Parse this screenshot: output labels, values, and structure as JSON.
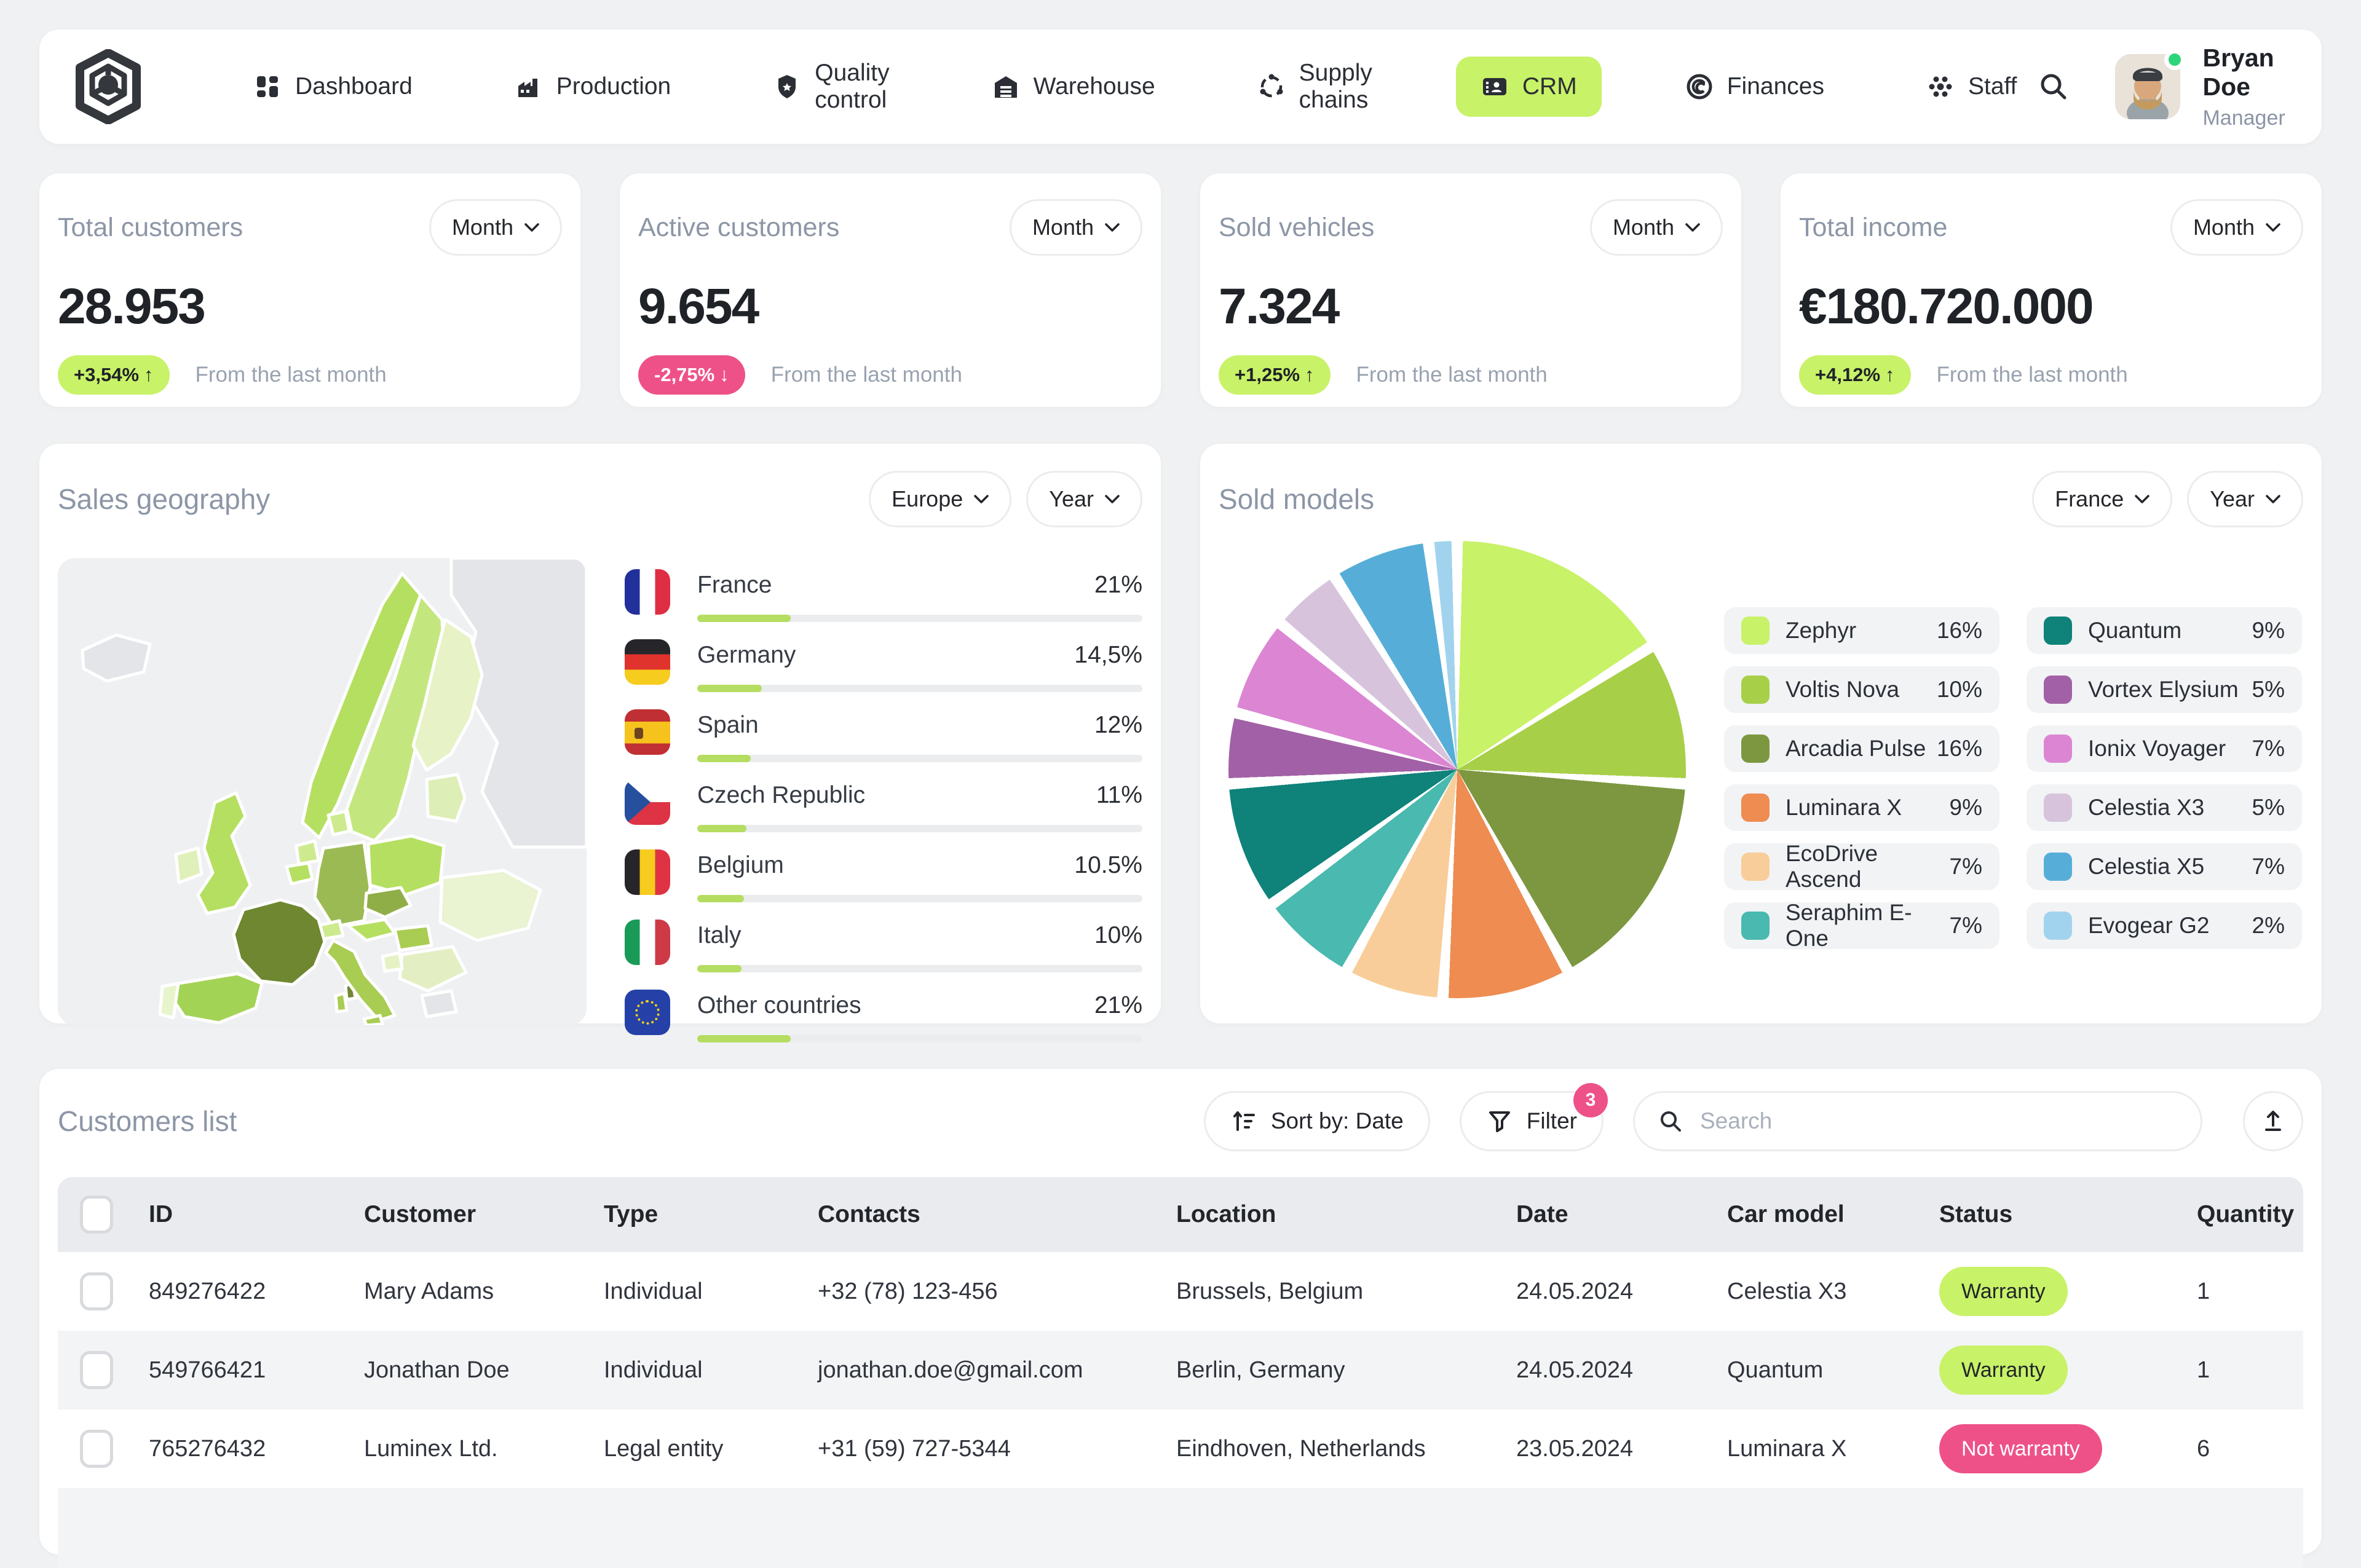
{
  "user": {
    "name": "Bryan Doe",
    "role": "Manager"
  },
  "nav": {
    "items": [
      {
        "label": "Dashboard",
        "icon": "dashboard-grid-icon"
      },
      {
        "label": "Production",
        "icon": "factory-icon"
      },
      {
        "label": "Quality control",
        "icon": "shield-icon"
      },
      {
        "label": "Warehouse",
        "icon": "warehouse-icon"
      },
      {
        "label": "Supply chains",
        "icon": "supply-loop-icon"
      },
      {
        "label": "CRM",
        "icon": "contact-card-icon",
        "active": true
      },
      {
        "label": "Finances",
        "icon": "coin-icon"
      },
      {
        "label": "Staff",
        "icon": "people-icon"
      }
    ]
  },
  "stats": [
    {
      "title": "Total customers",
      "period": "Month",
      "value": "28.953",
      "delta": "+3,54%",
      "arrow": "↑",
      "tone": "positive",
      "caption": "From the last month"
    },
    {
      "title": "Active customers",
      "period": "Month",
      "value": "9.654",
      "delta": "-2,75%",
      "arrow": "↓",
      "tone": "negative",
      "caption": "From the last month"
    },
    {
      "title": "Sold vehicles",
      "period": "Month",
      "value": "7.324",
      "delta": "+1,25%",
      "arrow": "↑",
      "tone": "positive",
      "caption": "From the last month"
    },
    {
      "title": "Total income",
      "period": "Month",
      "value": "€180.720.000",
      "delta": "+4,12%",
      "arrow": "↑",
      "tone": "positive",
      "caption": "From the last month"
    }
  ],
  "geo": {
    "title": "Sales geography",
    "region_label": "Europe",
    "period_label": "Year",
    "countries": [
      {
        "name": "France",
        "value_label": "21%",
        "value": 21,
        "flag": "fr"
      },
      {
        "name": "Germany",
        "value_label": "14,5%",
        "value": 14.5,
        "flag": "de"
      },
      {
        "name": "Spain",
        "value_label": "12%",
        "value": 12,
        "flag": "es"
      },
      {
        "name": "Czech Republic",
        "value_label": "11%",
        "value": 11,
        "flag": "cz"
      },
      {
        "name": "Belgium",
        "value_label": "10.5%",
        "value": 10.5,
        "flag": "be"
      },
      {
        "name": "Italy",
        "value_label": "10%",
        "value": 10,
        "flag": "it"
      },
      {
        "name": "Other countries",
        "value_label": "21%",
        "value": 21,
        "flag": "eu"
      }
    ]
  },
  "models": {
    "title": "Sold models",
    "region_label": "France",
    "period_label": "Year",
    "items": [
      {
        "name": "Zephyr",
        "value": 16,
        "value_label": "16%",
        "color": "#c8f268"
      },
      {
        "name": "Voltis Nova",
        "value": 10,
        "value_label": "10%",
        "color": "#a8cf48"
      },
      {
        "name": "Arcadia Pulse",
        "value": 16,
        "value_label": "16%",
        "color": "#7d9740"
      },
      {
        "name": "Luminara X",
        "value": 9,
        "value_label": "9%",
        "color": "#ee8c51"
      },
      {
        "name": "EcoDrive Ascend",
        "value": 7,
        "value_label": "7%",
        "color": "#f9cd99"
      },
      {
        "name": "Seraphim E-One",
        "value": 7,
        "value_label": "7%",
        "color": "#4ab9af"
      },
      {
        "name": "Quantum",
        "value": 9,
        "value_label": "9%",
        "color": "#0f827a"
      },
      {
        "name": "Vortex Elysium",
        "value": 5,
        "value_label": "5%",
        "color": "#a260a6"
      },
      {
        "name": "Ionix Voyager",
        "value": 7,
        "value_label": "7%",
        "color": "#dc86d3"
      },
      {
        "name": "Celestia X3",
        "value": 5,
        "value_label": "5%",
        "color": "#d7c4dc"
      },
      {
        "name": "Celestia X5",
        "value": 7,
        "value_label": "7%",
        "color": "#56aed8"
      },
      {
        "name": "Evogear G2",
        "value": 2,
        "value_label": "2%",
        "color": "#a2d3ee"
      }
    ]
  },
  "customers": {
    "title": "Customers list",
    "toolbar": {
      "sort_label": "Sort by: Date",
      "filter_label": "Filter",
      "filter_count": "3",
      "search_placeholder": "Search"
    },
    "columns": [
      "ID",
      "Customer",
      "Type",
      "Contacts",
      "Location",
      "Date",
      "Car model",
      "Status",
      "Quantity"
    ],
    "rows": [
      {
        "id": "849276422",
        "customer": "Mary Adams",
        "type": "Individual",
        "contacts": "+32 (78) 123-456",
        "location": "Brussels, Belgium",
        "date": "24.05.2024",
        "car_model": "Celestia X3",
        "status": "Warranty",
        "status_tone": "positive",
        "quantity": "1"
      },
      {
        "id": "549766421",
        "customer": "Jonathan Doe",
        "type": "Individual",
        "contacts": "jonathan.doe@gmail.com",
        "location": "Berlin, Germany",
        "date": "24.05.2024",
        "car_model": "Quantum",
        "status": "Warranty",
        "status_tone": "positive",
        "quantity": "1"
      },
      {
        "id": "765276432",
        "customer": "Luminex Ltd.",
        "type": "Legal entity",
        "contacts": "+31 (59) 727-5344",
        "location": "Eindhoven, Netherlands",
        "date": "23.05.2024",
        "car_model": "Luminara X",
        "status": "Not warranty",
        "status_tone": "negative",
        "quantity": "6"
      }
    ]
  },
  "colors": {
    "accent_green": "#c8f268",
    "accent_pink": "#ee5188",
    "bar_green": "#b5dd62",
    "online": "#2ed47a"
  },
  "chart_data": [
    {
      "type": "pie",
      "title": "Sold models",
      "unit": "%",
      "legend_position": "right",
      "series": [
        {
          "name": "Zephyr",
          "value": 16
        },
        {
          "name": "Voltis Nova",
          "value": 10
        },
        {
          "name": "Arcadia Pulse",
          "value": 16
        },
        {
          "name": "Luminara X",
          "value": 9
        },
        {
          "name": "EcoDrive Ascend",
          "value": 7
        },
        {
          "name": "Seraphim E-One",
          "value": 7
        },
        {
          "name": "Quantum",
          "value": 9
        },
        {
          "name": "Vortex Elysium",
          "value": 5
        },
        {
          "name": "Ionix Voyager",
          "value": 7
        },
        {
          "name": "Celestia X3",
          "value": 5
        },
        {
          "name": "Celestia X5",
          "value": 7
        },
        {
          "name": "Evogear G2",
          "value": 2
        }
      ]
    },
    {
      "type": "bar",
      "title": "Sales geography",
      "unit": "%",
      "categories": [
        "France",
        "Germany",
        "Spain",
        "Czech Republic",
        "Belgium",
        "Italy",
        "Other countries"
      ],
      "values": [
        21,
        14.5,
        12,
        11,
        10.5,
        10,
        21
      ]
    }
  ]
}
